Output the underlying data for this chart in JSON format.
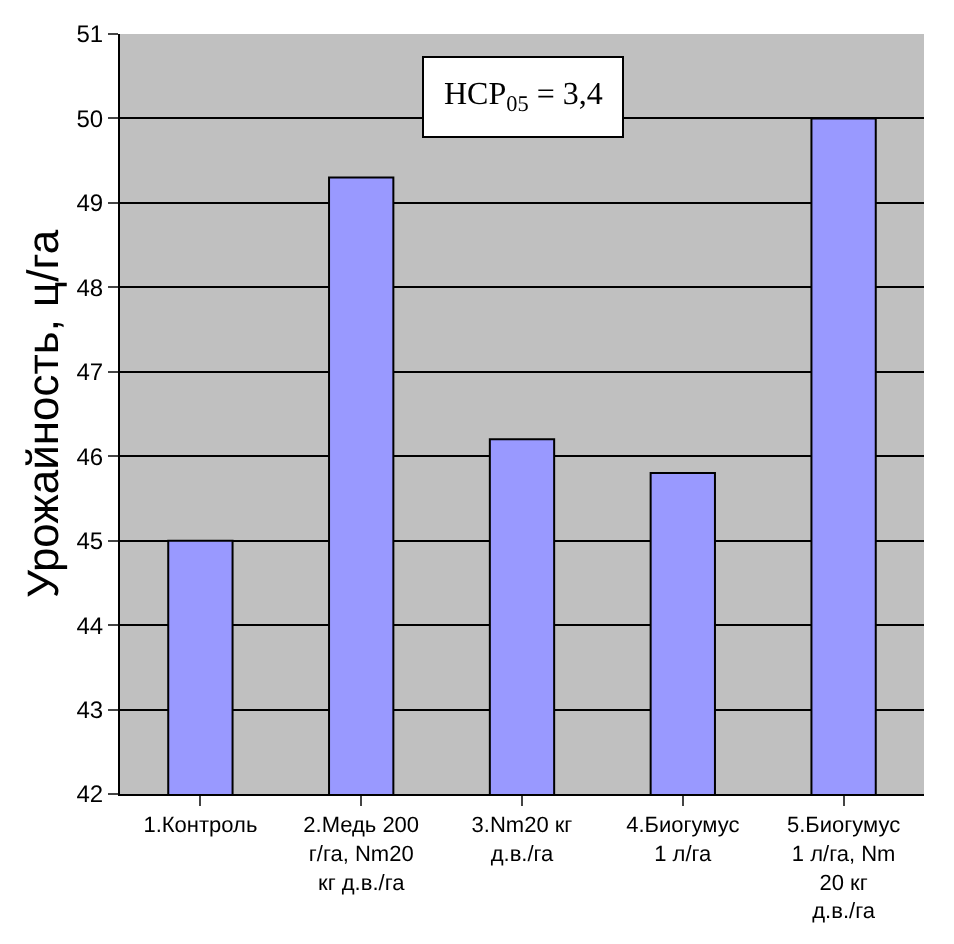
{
  "chart_data": {
    "type": "bar",
    "ylabel": "Урожайность, ц/га",
    "categories": [
      "1.Контроль",
      "2.Медь 200 г/га, Nm20 кг д.в./га",
      "3.Nm20 кг д.в./га",
      "4.Биогумус 1 л/га",
      "5.Биогумус 1 л/га, Nm 20 кг д.в./га"
    ],
    "values": [
      45.0,
      49.3,
      46.2,
      45.8,
      50.0
    ],
    "color": "#9999ff",
    "ylim": [
      42,
      51
    ],
    "yticks": [
      42,
      43,
      44,
      45,
      46,
      47,
      48,
      49,
      50,
      51
    ],
    "grid": "y",
    "annotations": [
      "HCP$_{05}$ = 3,4"
    ]
  }
}
